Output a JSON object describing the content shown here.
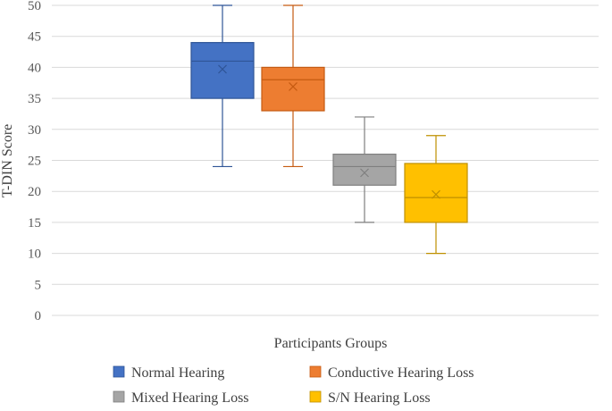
{
  "chart_data": {
    "type": "boxplot",
    "title": "",
    "xlabel": "Participants Groups",
    "ylabel": "T-DIN Score",
    "ylim": [
      0,
      50
    ],
    "y_ticks": [
      0,
      5,
      10,
      15,
      20,
      25,
      30,
      35,
      40,
      45,
      50
    ],
    "grid": true,
    "legend_position": "bottom",
    "series": [
      {
        "name": "Normal Hearing",
        "color": "#4472C4",
        "stroke": "#2F5597",
        "min": 24,
        "q1": 35,
        "median": 41,
        "q3": 44,
        "max": 50,
        "mean": 39.7
      },
      {
        "name": "Conductive Hearing Loss",
        "color": "#ED7D31",
        "stroke": "#C55A11",
        "min": 24,
        "q1": 33,
        "median": 38,
        "q3": 40,
        "max": 50,
        "mean": 36.9
      },
      {
        "name": "Mixed Hearing Loss",
        "color": "#A5A5A5",
        "stroke": "#7F7F7F",
        "min": 15,
        "q1": 21,
        "median": 24,
        "q3": 26,
        "max": 32,
        "mean": 23
      },
      {
        "name": "S/N Hearing Loss",
        "color": "#FFC000",
        "stroke": "#BF9000",
        "min": 10,
        "q1": 15,
        "median": 19,
        "q3": 24.5,
        "max": 29,
        "mean": 19.5
      }
    ]
  }
}
